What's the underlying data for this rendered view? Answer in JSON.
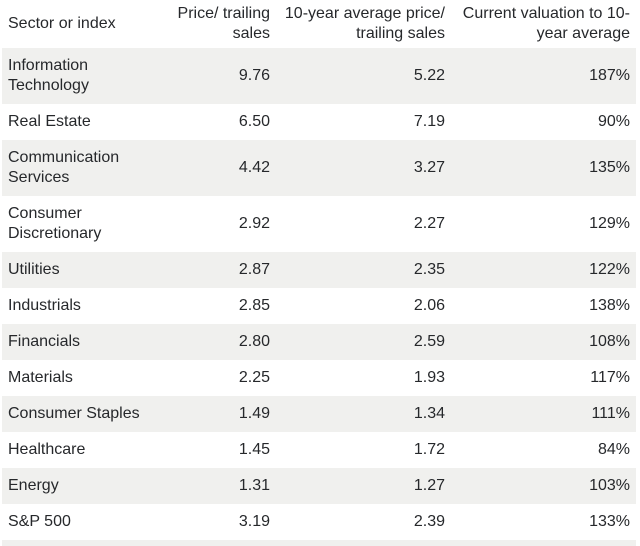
{
  "colors": {
    "stripe": "#f0f0ee",
    "text": "#26282b",
    "background": "#ffffff"
  },
  "table": {
    "columns": [
      {
        "label": "Sector or index",
        "align": "left"
      },
      {
        "label": "Price/ trailing\nsales",
        "align": "right"
      },
      {
        "label": "10-year average price/\ntrailing sales",
        "align": "right"
      },
      {
        "label": "Current valuation to 10-\nyear average",
        "align": "right"
      }
    ],
    "rows": [
      {
        "sector": "Information Technology",
        "price_trailing_sales": "9.76",
        "ten_year_avg_price_trailing_sales": "5.22",
        "current_valuation_to_ten_year_avg": "187%"
      },
      {
        "sector": "Real Estate",
        "price_trailing_sales": "6.50",
        "ten_year_avg_price_trailing_sales": "7.19",
        "current_valuation_to_ten_year_avg": "90%"
      },
      {
        "sector": "Communication Services",
        "price_trailing_sales": "4.42",
        "ten_year_avg_price_trailing_sales": "3.27",
        "current_valuation_to_ten_year_avg": "135%"
      },
      {
        "sector": "Consumer Discretionary",
        "price_trailing_sales": "2.92",
        "ten_year_avg_price_trailing_sales": "2.27",
        "current_valuation_to_ten_year_avg": "129%"
      },
      {
        "sector": "Utilities",
        "price_trailing_sales": "2.87",
        "ten_year_avg_price_trailing_sales": "2.35",
        "current_valuation_to_ten_year_avg": "122%"
      },
      {
        "sector": "Industrials",
        "price_trailing_sales": "2.85",
        "ten_year_avg_price_trailing_sales": "2.06",
        "current_valuation_to_ten_year_avg": "138%"
      },
      {
        "sector": "Financials",
        "price_trailing_sales": "2.80",
        "ten_year_avg_price_trailing_sales": "2.59",
        "current_valuation_to_ten_year_avg": "108%"
      },
      {
        "sector": "Materials",
        "price_trailing_sales": "2.25",
        "ten_year_avg_price_trailing_sales": "1.93",
        "current_valuation_to_ten_year_avg": "117%"
      },
      {
        "sector": "Consumer Staples",
        "price_trailing_sales": "1.49",
        "ten_year_avg_price_trailing_sales": "1.34",
        "current_valuation_to_ten_year_avg": "111%"
      },
      {
        "sector": "Healthcare",
        "price_trailing_sales": "1.45",
        "ten_year_avg_price_trailing_sales": "1.72",
        "current_valuation_to_ten_year_avg": "84%"
      },
      {
        "sector": "Energy",
        "price_trailing_sales": "1.31",
        "ten_year_avg_price_trailing_sales": "1.27",
        "current_valuation_to_ten_year_avg": "103%"
      },
      {
        "sector": "S&P 500",
        "price_trailing_sales": "3.19",
        "ten_year_avg_price_trailing_sales": "2.39",
        "current_valuation_to_ten_year_avg": "133%"
      }
    ]
  }
}
